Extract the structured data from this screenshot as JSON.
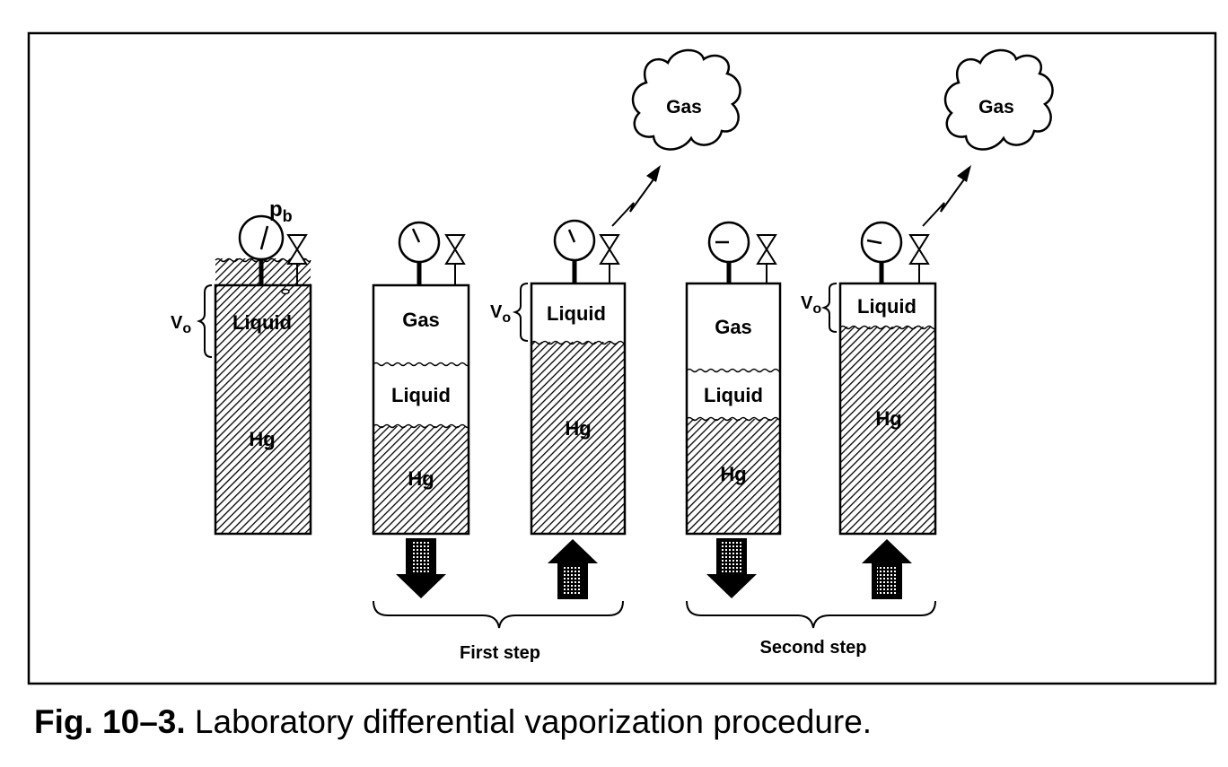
{
  "figure": {
    "number": "Fig. 10–3.",
    "caption": "Laboratory differential vaporization procedure."
  },
  "labels": {
    "pb": "p",
    "pb_sub": "b",
    "v0": "V",
    "v0_sub": "o",
    "liquid": "Liquid",
    "gas": "Gas",
    "hg": "Hg",
    "first_step": "First step",
    "second_step": "Second step"
  },
  "cells": [
    {
      "id": "initial",
      "layers": [
        "liquid",
        "hg"
      ],
      "arrow": "none"
    },
    {
      "id": "first-expand",
      "layers": [
        "gas",
        "liquid",
        "hg"
      ],
      "arrow": "down"
    },
    {
      "id": "first-displace",
      "layers": [
        "liquid",
        "hg"
      ],
      "arrow": "up"
    },
    {
      "id": "second-expand",
      "layers": [
        "gas",
        "liquid",
        "hg"
      ],
      "arrow": "down"
    },
    {
      "id": "second-displace",
      "layers": [
        "liquid",
        "hg"
      ],
      "arrow": "up"
    }
  ]
}
